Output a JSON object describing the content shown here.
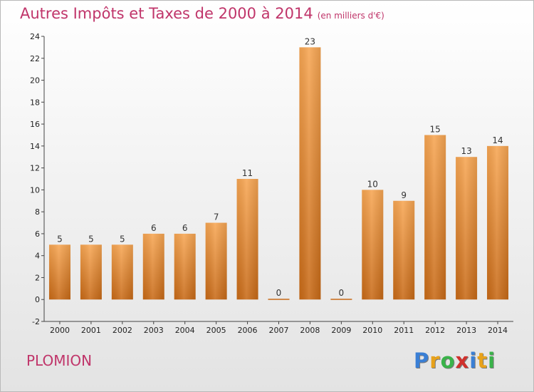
{
  "title": "Autres Impôts et Taxes de 2000 à 2014",
  "unit": "(en milliers d'€)",
  "location": "PLOMION",
  "logo": {
    "letters": [
      "P",
      "r",
      "o",
      "x",
      "i",
      "t",
      "i"
    ],
    "colors": [
      "#3a7fd5",
      "#e8a21a",
      "#3ab34a",
      "#d0312d",
      "#3a7fd5",
      "#e8a21a",
      "#3ab34a"
    ]
  },
  "colors": {
    "bar_top": "#f7a653",
    "bar_bottom": "#c86a17",
    "title": "#c0356a"
  },
  "chart_data": {
    "type": "bar",
    "categories": [
      "2000",
      "2001",
      "2002",
      "2003",
      "2004",
      "2005",
      "2006",
      "2007",
      "2008",
      "2009",
      "2010",
      "2011",
      "2012",
      "2013",
      "2014"
    ],
    "values": [
      5,
      5,
      5,
      6,
      6,
      7,
      11,
      0,
      23,
      0,
      10,
      9,
      15,
      13,
      14
    ],
    "ylim": [
      -2,
      24
    ],
    "yticks": [
      -2,
      0,
      2,
      4,
      6,
      8,
      10,
      12,
      14,
      16,
      18,
      20,
      22,
      24
    ],
    "grid": false,
    "legend": "none"
  }
}
